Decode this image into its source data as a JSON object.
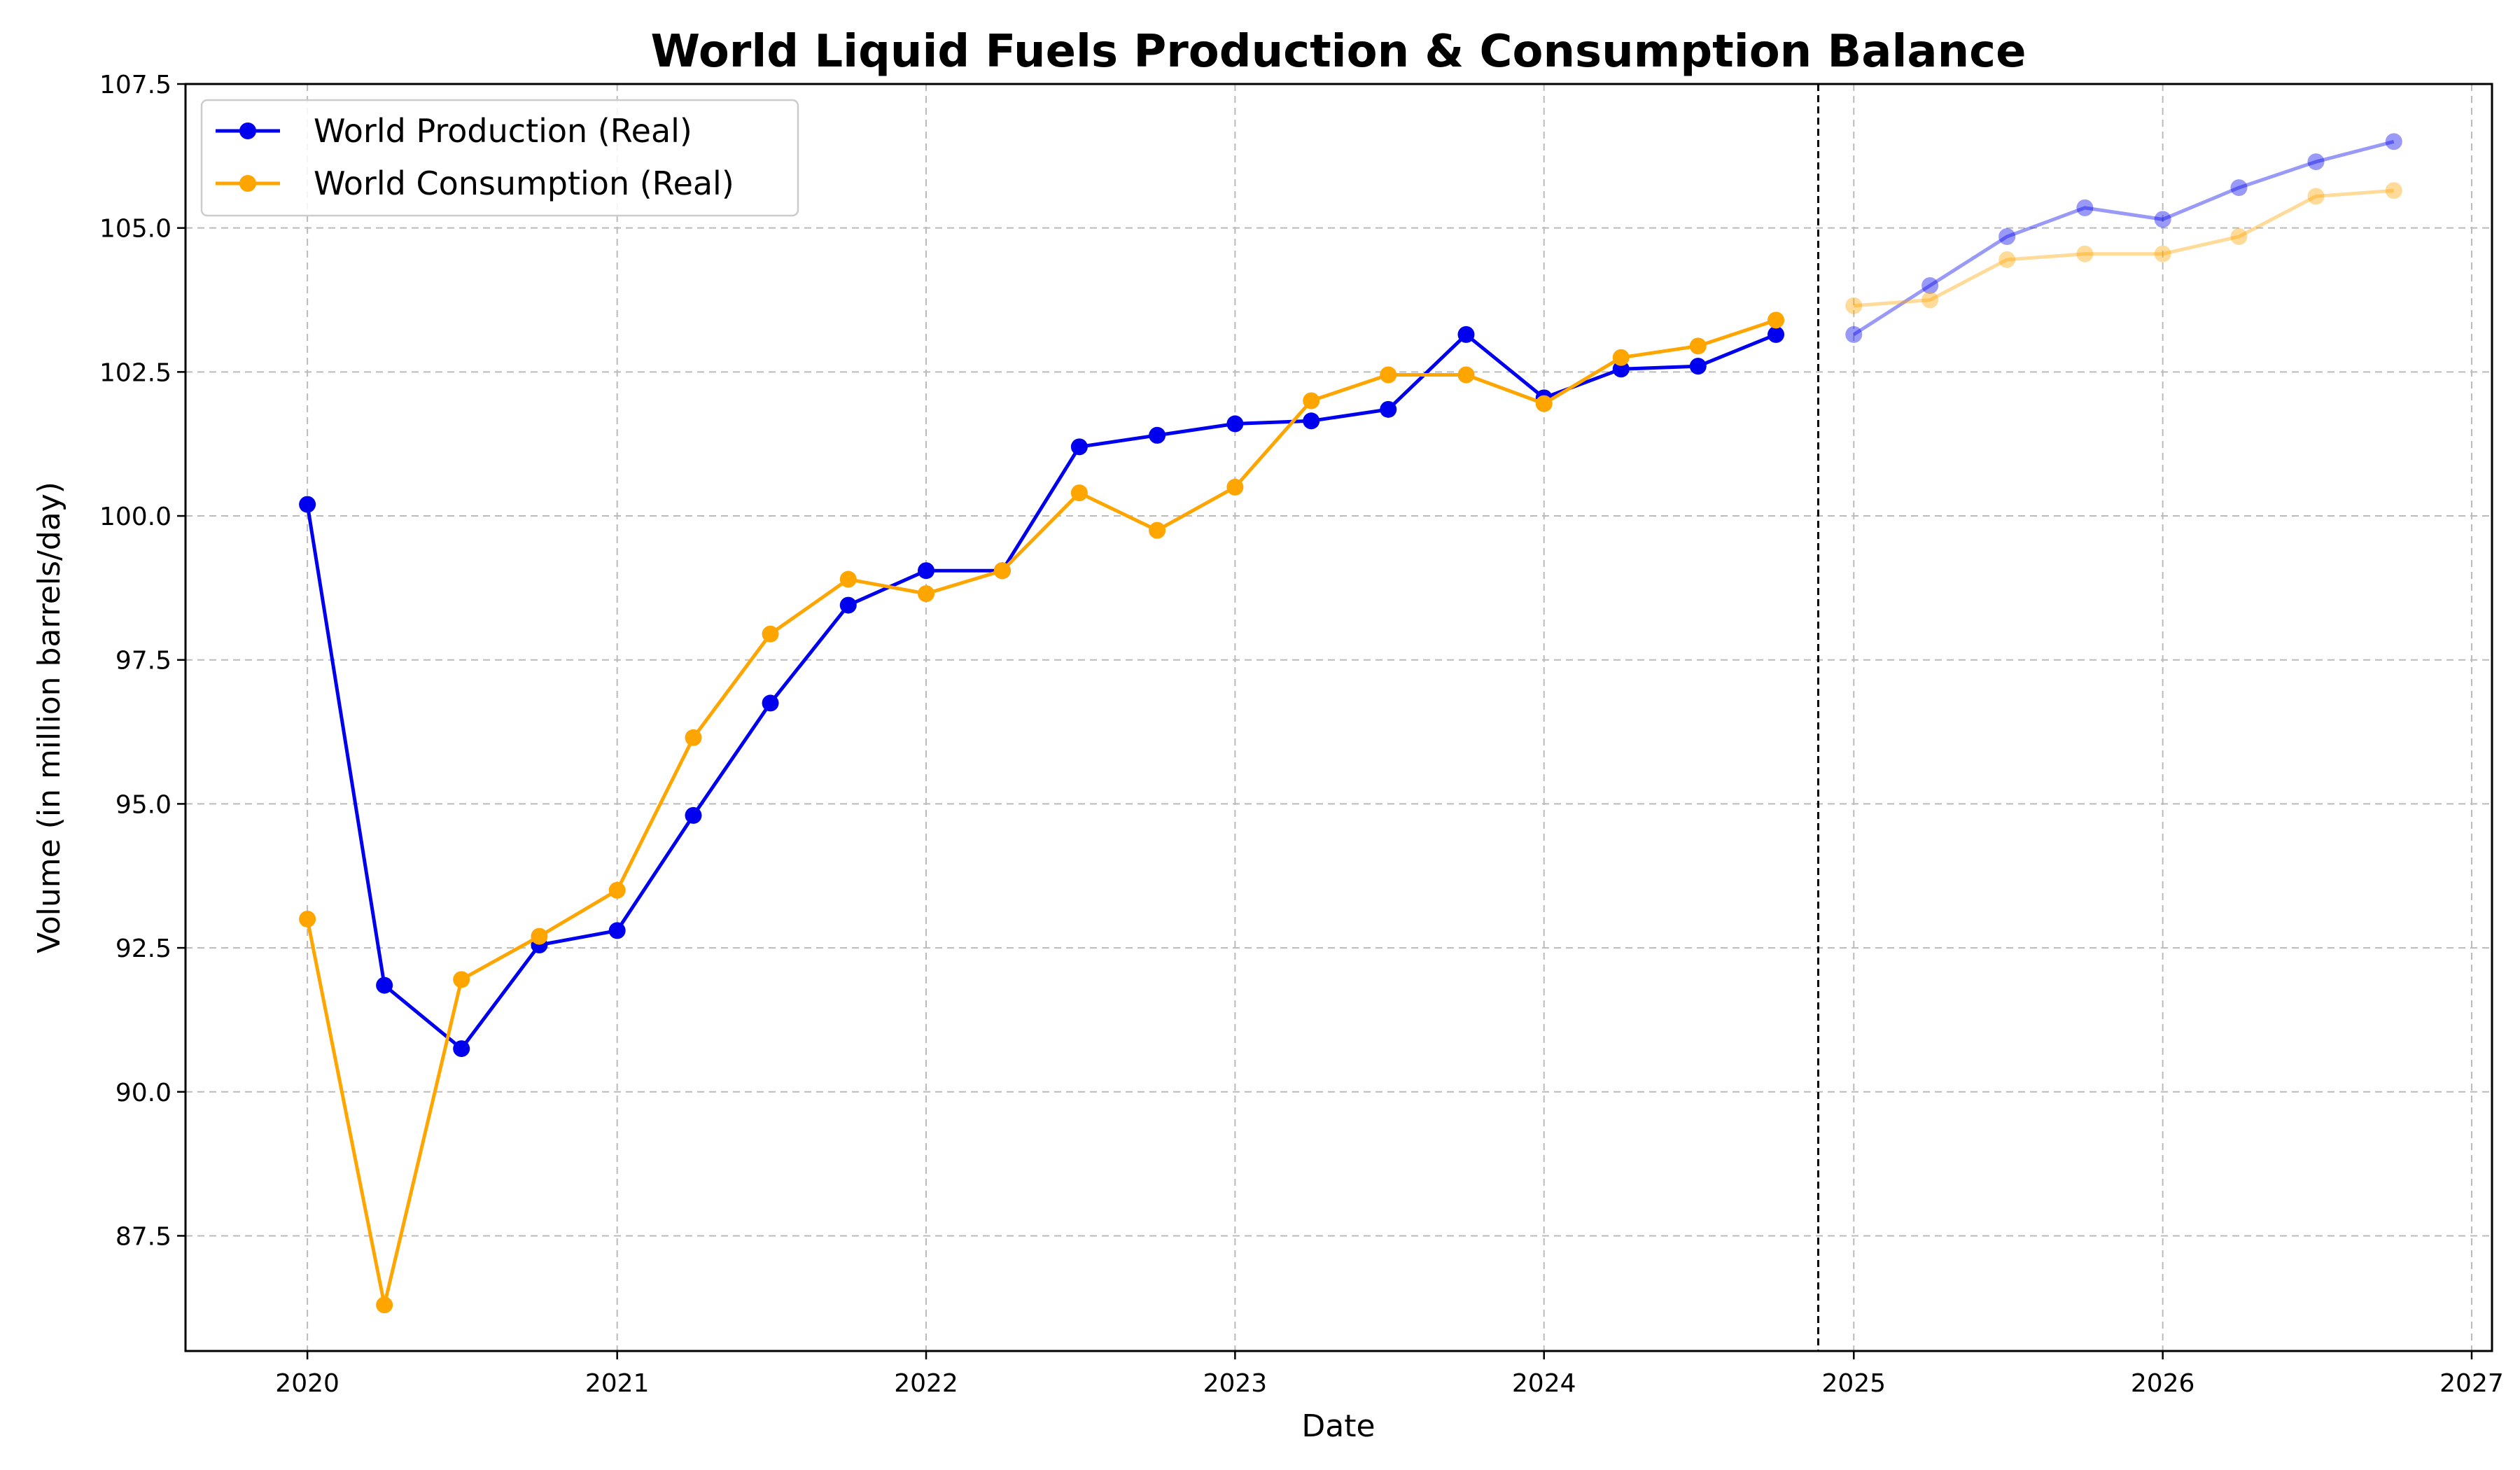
{
  "chart_data": {
    "type": "line",
    "title": "World Liquid Fuels Production & Consumption Balance",
    "xlabel": "Date",
    "ylabel": "Volume (in million barrels/day)",
    "ylim": [
      85.5,
      107.5
    ],
    "xlim": [
      "2019-08-10",
      "2027-01-25"
    ],
    "yticks": [
      87.5,
      90.0,
      92.5,
      95.0,
      97.5,
      100.0,
      102.5,
      105.0,
      107.5
    ],
    "ytick_labels": [
      "87.5",
      "90.0",
      "92.5",
      "95.0",
      "97.5",
      "100.0",
      "102.5",
      "105.0",
      "107.5"
    ],
    "xticks": [
      "2020-01-01",
      "2021-01-01",
      "2022-01-01",
      "2023-01-01",
      "2024-01-01",
      "2025-01-01",
      "2026-01-01",
      "2027-01-01"
    ],
    "xtick_labels": [
      "2020",
      "2021",
      "2022",
      "2023",
      "2024",
      "2025",
      "2026",
      "2027"
    ],
    "grid": true,
    "legend_position": "top-left",
    "forecast_divider_date": "2024-11-20",
    "x": [
      "2020-01-01",
      "2020-04-01",
      "2020-07-01",
      "2020-10-01",
      "2021-01-01",
      "2021-04-01",
      "2021-07-01",
      "2021-10-01",
      "2022-01-01",
      "2022-04-01",
      "2022-07-01",
      "2022-10-01",
      "2023-01-01",
      "2023-04-01",
      "2023-07-01",
      "2023-10-01",
      "2024-01-01",
      "2024-04-01",
      "2024-07-01",
      "2024-10-01"
    ],
    "x_forecast": [
      "2025-01-01",
      "2025-04-01",
      "2025-07-01",
      "2025-10-01",
      "2026-01-01",
      "2026-04-01",
      "2026-07-01",
      "2026-10-01"
    ],
    "series": [
      {
        "name": "World Production (Real)",
        "color": "#0000ee",
        "values": [
          100.2,
          91.85,
          90.75,
          92.55,
          92.8,
          94.8,
          96.75,
          98.45,
          99.05,
          99.05,
          101.2,
          101.4,
          101.6,
          101.65,
          101.85,
          103.15,
          102.05,
          102.55,
          102.6,
          103.15
        ],
        "forecast_values": [
          103.15,
          104.0,
          104.85,
          105.35,
          105.15,
          105.7,
          106.15,
          106.5
        ]
      },
      {
        "name": "World Consumption (Real)",
        "color": "#ffa500",
        "values": [
          93.0,
          86.3,
          91.95,
          92.7,
          93.5,
          96.15,
          97.95,
          98.9,
          98.65,
          99.05,
          100.4,
          99.75,
          100.5,
          102.0,
          102.45,
          102.45,
          101.95,
          102.75,
          102.95,
          103.4
        ],
        "forecast_values": [
          103.65,
          103.75,
          104.45,
          104.55,
          104.55,
          104.85,
          105.55,
          105.65
        ]
      }
    ]
  }
}
